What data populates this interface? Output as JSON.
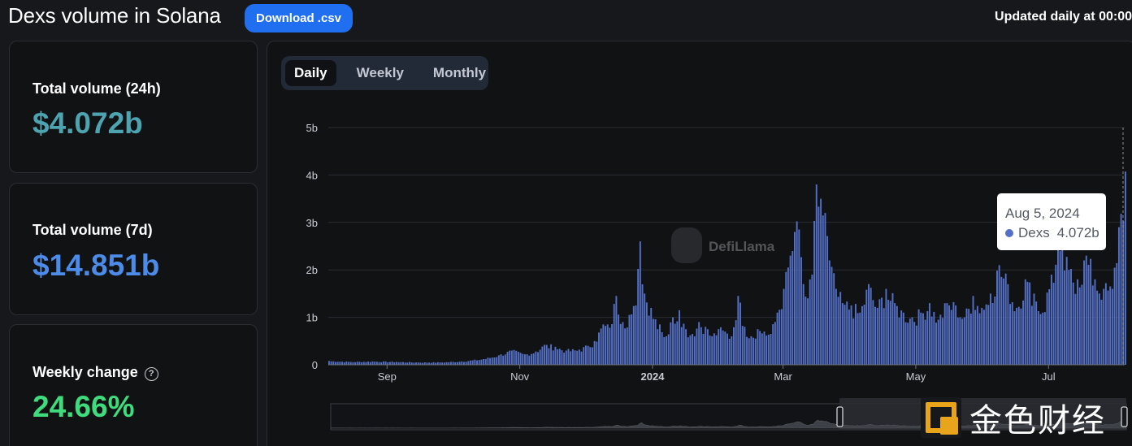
{
  "page": {
    "title": "Dexs volume in Solana",
    "download_label": "Download .csv",
    "updated_note": "Updated daily at 00:00"
  },
  "stats": [
    {
      "label": "Total volume (24h)",
      "value": "$4.072b",
      "color": "#4ea3b0"
    },
    {
      "label": "Total volume (7d)",
      "value": "$14.851b",
      "color": "#4c8ce8"
    },
    {
      "label": "Weekly change",
      "value": "24.66%",
      "color": "#3fdc7e",
      "help_icon": "question-circle-icon"
    }
  ],
  "tabs": [
    {
      "label": "Daily",
      "active": true
    },
    {
      "label": "Weekly",
      "active": false
    },
    {
      "label": "Monthly",
      "active": false
    }
  ],
  "tooltip": {
    "date": "Aug 5, 2024",
    "series": "Dexs",
    "value": "4.072b"
  },
  "watermark": {
    "defillama": "DefiLlama",
    "jinse": "金色财经"
  },
  "chart_data": {
    "type": "bar",
    "series": [
      {
        "name": "Dexs",
        "color": "#5470c6"
      }
    ],
    "unit": "b",
    "ylim": [
      0,
      5
    ],
    "y_ticks": [
      {
        "value": 0,
        "label": "0"
      },
      {
        "value": 1,
        "label": "1b"
      },
      {
        "value": 2,
        "label": "2b"
      },
      {
        "value": 3,
        "label": "3b"
      },
      {
        "value": 4,
        "label": "4b"
      },
      {
        "value": 5,
        "label": "5b"
      }
    ],
    "x_range": [
      "2023-08-05",
      "2024-08-05"
    ],
    "x_ticks": [
      {
        "date": "2023-09-01",
        "label": "Sep",
        "bold": false
      },
      {
        "date": "2023-11-01",
        "label": "Nov",
        "bold": false
      },
      {
        "date": "2024-01-01",
        "label": "2024",
        "bold": true
      },
      {
        "date": "2024-03-01",
        "label": "Mar",
        "bold": false
      },
      {
        "date": "2024-05-01",
        "label": "May",
        "bold": false
      },
      {
        "date": "2024-07-01",
        "label": "Jul",
        "bold": false
      }
    ],
    "grid": true,
    "legend": "none",
    "daily": [
      [
        "2023-08-05",
        0.08
      ],
      [
        "2023-08-15",
        0.06
      ],
      [
        "2023-08-25",
        0.07
      ],
      [
        "2023-09-05",
        0.06
      ],
      [
        "2023-09-15",
        0.05
      ],
      [
        "2023-09-25",
        0.05
      ],
      [
        "2023-10-05",
        0.07
      ],
      [
        "2023-10-15",
        0.12
      ],
      [
        "2023-10-22",
        0.2
      ],
      [
        "2023-10-28",
        0.3
      ],
      [
        "2023-11-03",
        0.22
      ],
      [
        "2023-11-08",
        0.28
      ],
      [
        "2023-11-12",
        0.42
      ],
      [
        "2023-11-17",
        0.38
      ],
      [
        "2023-11-22",
        0.3
      ],
      [
        "2023-11-28",
        0.32
      ],
      [
        "2023-12-02",
        0.4
      ],
      [
        "2023-12-05",
        0.5
      ],
      [
        "2023-12-09",
        0.85
      ],
      [
        "2023-12-12",
        0.78
      ],
      [
        "2023-12-15",
        1.45
      ],
      [
        "2023-12-18",
        0.9
      ],
      [
        "2023-12-21",
        1.05
      ],
      [
        "2023-12-24",
        1.25
      ],
      [
        "2023-12-26",
        2.6
      ],
      [
        "2023-12-28",
        1.5
      ],
      [
        "2023-12-31",
        1.2
      ],
      [
        "2024-01-04",
        0.85
      ],
      [
        "2024-01-07",
        0.6
      ],
      [
        "2024-01-10",
        1.0
      ],
      [
        "2024-01-13",
        1.15
      ],
      [
        "2024-01-16",
        0.75
      ],
      [
        "2024-01-19",
        0.65
      ],
      [
        "2024-01-22",
        0.9
      ],
      [
        "2024-01-25",
        0.8
      ],
      [
        "2024-01-28",
        0.6
      ],
      [
        "2024-01-31",
        0.75
      ],
      [
        "2024-02-03",
        0.7
      ],
      [
        "2024-02-06",
        0.6
      ],
      [
        "2024-02-09",
        1.45
      ],
      [
        "2024-02-12",
        0.8
      ],
      [
        "2024-02-15",
        0.6
      ],
      [
        "2024-02-18",
        0.75
      ],
      [
        "2024-02-21",
        0.7
      ],
      [
        "2024-02-24",
        0.65
      ],
      [
        "2024-02-27",
        1.1
      ],
      [
        "2024-03-01",
        1.6
      ],
      [
        "2024-03-04",
        2.3
      ],
      [
        "2024-03-06",
        2.8
      ],
      [
        "2024-03-08",
        2.85
      ],
      [
        "2024-03-10",
        1.7
      ],
      [
        "2024-03-12",
        1.4
      ],
      [
        "2024-03-14",
        1.9
      ],
      [
        "2024-03-16",
        3.8
      ],
      [
        "2024-03-18",
        3.5
      ],
      [
        "2024-03-20",
        3.2
      ],
      [
        "2024-03-22",
        2.2
      ],
      [
        "2024-03-25",
        1.6
      ],
      [
        "2024-03-28",
        1.3
      ],
      [
        "2024-04-01",
        1.25
      ],
      [
        "2024-04-05",
        1.1
      ],
      [
        "2024-04-09",
        1.7
      ],
      [
        "2024-04-13",
        1.2
      ],
      [
        "2024-04-17",
        1.6
      ],
      [
        "2024-04-21",
        1.3
      ],
      [
        "2024-04-25",
        1.1
      ],
      [
        "2024-04-29",
        1.0
      ],
      [
        "2024-05-03",
        1.1
      ],
      [
        "2024-05-07",
        1.3
      ],
      [
        "2024-05-11",
        0.95
      ],
      [
        "2024-05-15",
        1.3
      ],
      [
        "2024-05-19",
        1.25
      ],
      [
        "2024-05-23",
        1.0
      ],
      [
        "2024-05-27",
        1.45
      ],
      [
        "2024-05-31",
        1.2
      ],
      [
        "2024-06-04",
        1.5
      ],
      [
        "2024-06-08",
        2.1
      ],
      [
        "2024-06-12",
        1.7
      ],
      [
        "2024-06-16",
        1.2
      ],
      [
        "2024-06-20",
        1.8
      ],
      [
        "2024-06-24",
        1.5
      ],
      [
        "2024-06-28",
        1.1
      ],
      [
        "2024-07-02",
        1.9
      ],
      [
        "2024-07-06",
        2.4
      ],
      [
        "2024-07-10",
        2.0
      ],
      [
        "2024-07-14",
        1.8
      ],
      [
        "2024-07-18",
        2.3
      ],
      [
        "2024-07-22",
        1.8
      ],
      [
        "2024-07-26",
        1.6
      ],
      [
        "2024-07-30",
        1.6
      ],
      [
        "2024-08-02",
        2.9
      ],
      [
        "2024-08-05",
        4.072
      ]
    ]
  }
}
